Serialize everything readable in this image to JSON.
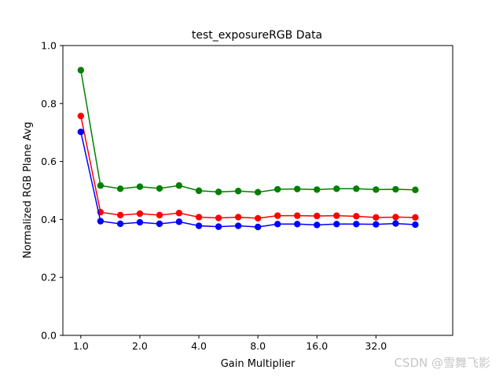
{
  "chart_data": {
    "type": "line",
    "title": "test_exposureRGB Data",
    "xlabel": "Gain Multiplier",
    "ylabel": "Normalized RGB Plane Avg",
    "x_scale": "log2",
    "xlim": [
      0.81,
      78.8
    ],
    "ylim": [
      0.0,
      1.0
    ],
    "x_ticks": [
      1,
      2,
      4,
      8,
      16,
      32
    ],
    "x_tick_labels": [
      "1.0",
      "2.0",
      "4.0",
      "8.0",
      "16.0",
      "32.0"
    ],
    "y_ticks": [
      0.0,
      0.2,
      0.4,
      0.6,
      0.8,
      1.0
    ],
    "y_tick_labels": [
      "0.0",
      "0.2",
      "0.4",
      "0.6",
      "0.8",
      "1.0"
    ],
    "grid": false,
    "legend": false,
    "x": [
      1.0,
      1.26,
      1.59,
      2.0,
      2.52,
      3.17,
      4.0,
      5.04,
      6.35,
      8.0,
      10.08,
      12.7,
      16.0,
      20.16,
      25.4,
      32.0,
      40.32,
      50.8
    ],
    "series": [
      {
        "color": "#ff0000",
        "values": [
          0.757,
          0.425,
          0.415,
          0.42,
          0.415,
          0.422,
          0.408,
          0.405,
          0.408,
          0.404,
          0.413,
          0.413,
          0.412,
          0.413,
          0.411,
          0.407,
          0.408,
          0.407
        ]
      },
      {
        "color": "#008000",
        "values": [
          0.915,
          0.517,
          0.506,
          0.513,
          0.507,
          0.517,
          0.499,
          0.495,
          0.498,
          0.494,
          0.504,
          0.505,
          0.503,
          0.506,
          0.506,
          0.503,
          0.504,
          0.502
        ]
      },
      {
        "color": "#0000ff",
        "values": [
          0.702,
          0.394,
          0.385,
          0.39,
          0.385,
          0.392,
          0.378,
          0.375,
          0.378,
          0.374,
          0.384,
          0.384,
          0.381,
          0.384,
          0.384,
          0.383,
          0.386,
          0.382
        ]
      }
    ]
  },
  "watermark": "CSDN @雪舞飞影"
}
